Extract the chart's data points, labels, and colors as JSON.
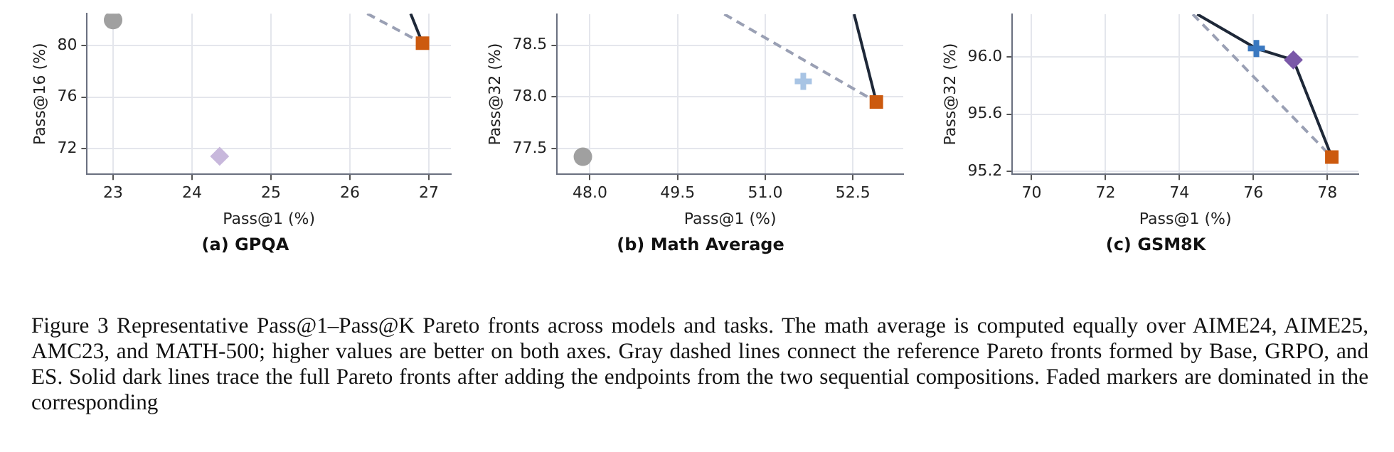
{
  "chart_data": [
    {
      "type": "scatter",
      "title": "(a) GPQA",
      "xlabel": "Pass@1 (%)",
      "ylabel": "Pass@16 (%)",
      "xlim": [
        22.67,
        27.28
      ],
      "ylim": [
        70.0,
        82.5
      ],
      "xticks": [
        23,
        24,
        25,
        26,
        27
      ],
      "yticks": [
        72,
        76,
        80
      ],
      "grid": true,
      "annotations": [
        "Figure 3  Representative Pass@1–Pass@K Pareto fronts across models and tasks. The math average is computed equally over AIME24, AIME25, AMC23, and MATH-500; higher values are better on both axes. Gray dashed lines connect the reference Pareto fronts formed by Base, GRPO, and ES. Solid dark lines trace the full Pareto fronts after adding the endpoints from the two sequential compositions. Faded markers are dominated in the corresponding"
      ],
      "series": [
        {
          "type": "line",
          "line_style": "dashed",
          "marker": "none",
          "color": "#9aa0b4",
          "x": [
            26.22,
            26.92
          ],
          "values": [
            82.5,
            80.2
          ]
        },
        {
          "type": "line",
          "line_style": "solid",
          "marker": "none",
          "color": "#1e2838",
          "x": [
            26.77,
            26.92
          ],
          "values": [
            82.5,
            80.2
          ]
        },
        {
          "type": "scatter",
          "marker": "circle",
          "color": "#a0a0a0",
          "x": [
            23.0
          ],
          "values": [
            82.0
          ]
        },
        {
          "type": "scatter",
          "marker": "diamond",
          "color": "#c8b8dc",
          "x": [
            24.35
          ],
          "values": [
            71.4
          ]
        },
        {
          "type": "scatter",
          "marker": "square",
          "color": "#cc5a0f",
          "x": [
            26.92
          ],
          "values": [
            80.2
          ]
        }
      ]
    },
    {
      "type": "scatter",
      "title": "(b) Math Average",
      "xlabel": "Pass@1 (%)",
      "ylabel": "Pass@32 (%)",
      "xlim": [
        47.44,
        53.36
      ],
      "ylim": [
        77.25,
        78.8
      ],
      "xticks": [
        {
          "value": 48,
          "label": "48.0"
        },
        {
          "value": 49.5,
          "label": "49.5"
        },
        {
          "value": 51,
          "label": "51.0"
        },
        {
          "value": 52.5,
          "label": "52.5"
        }
      ],
      "yticks": [
        {
          "value": 77.5,
          "label": "77.5"
        },
        {
          "value": 78,
          "label": "78.0"
        },
        {
          "value": 78.5,
          "label": "78.5"
        }
      ],
      "grid": true,
      "series": [
        {
          "type": "line",
          "line_style": "dashed",
          "marker": "none",
          "color": "#9aa0b4",
          "x": [
            50.3,
            52.9
          ],
          "values": [
            78.8,
            77.95
          ]
        },
        {
          "type": "line",
          "line_style": "solid",
          "marker": "none",
          "color": "#1e2838",
          "x": [
            52.52,
            52.9
          ],
          "values": [
            78.8,
            77.95
          ]
        },
        {
          "type": "scatter",
          "marker": "circle",
          "color": "#a0a0a0",
          "x": [
            47.88
          ],
          "values": [
            77.42
          ]
        },
        {
          "type": "scatter",
          "marker": "cross",
          "color": "#a8c4e4",
          "x": [
            51.65
          ],
          "values": [
            78.15
          ]
        },
        {
          "type": "scatter",
          "marker": "square",
          "color": "#cc5a0f",
          "x": [
            52.9
          ],
          "values": [
            77.95
          ]
        }
      ]
    },
    {
      "type": "scatter",
      "title": "(c) GSM8K",
      "xlabel": "Pass@1 (%)",
      "ylabel": "Pass@32 (%)",
      "xlim": [
        69.48,
        78.84
      ],
      "ylim": [
        95.18,
        96.3
      ],
      "xticks": [
        70,
        72,
        74,
        76,
        78
      ],
      "yticks": [
        {
          "value": 95.2,
          "label": "95.2"
        },
        {
          "value": 95.6,
          "label": "95.6"
        },
        {
          "value": 96,
          "label": "96.0"
        }
      ],
      "grid": true,
      "series": [
        {
          "type": "line",
          "line_style": "dashed",
          "marker": "none",
          "color": "#9aa0b4",
          "x": [
            74.36,
            78.12
          ],
          "values": [
            96.3,
            95.3
          ]
        },
        {
          "type": "line",
          "line_style": "solid",
          "marker": "none",
          "color": "#1e2838",
          "x": [
            74.48,
            76.08,
            77.08,
            78.12
          ],
          "values": [
            96.3,
            96.06,
            95.98,
            95.3
          ]
        },
        {
          "type": "scatter",
          "marker": "cross",
          "color": "#3a78c0",
          "x": [
            76.08
          ],
          "values": [
            96.06
          ]
        },
        {
          "type": "scatter",
          "marker": "diamond",
          "color": "#7a58a8",
          "x": [
            77.08
          ],
          "values": [
            95.98
          ]
        },
        {
          "type": "scatter",
          "marker": "square",
          "color": "#cc5a0f",
          "x": [
            78.12
          ],
          "values": [
            95.3
          ]
        }
      ]
    }
  ]
}
